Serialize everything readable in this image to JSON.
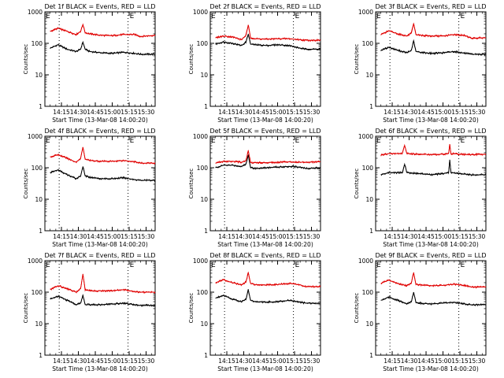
{
  "figure": {
    "xlabel": "Start Time (13-Mar-08 14:00:20)",
    "ylabel": "Counts/sec",
    "x_tick_labels": [
      "14:15",
      "14:30",
      "14:45",
      "15:00",
      "15:15",
      "15:30"
    ],
    "y_tick_labels": [
      "1",
      "10",
      "100",
      "1000"
    ],
    "marker_label": "E",
    "colors": {
      "events": "#000000",
      "lld": "#e00000"
    }
  },
  "chart_data": [
    {
      "type": "line",
      "title": "Det 1f BLACK = Events, RED = LLD",
      "x": [
        "14:05",
        "14:12",
        "14:20",
        "14:28",
        "14:32",
        "14:34",
        "14:36",
        "14:40",
        "14:50",
        "15:00",
        "15:10",
        "15:20",
        "15:25",
        "15:38"
      ],
      "xlim": [
        "14:00:20",
        "15:38"
      ],
      "ylim": [
        1,
        1000
      ],
      "yscale": "log",
      "vlines": [
        "14:13",
        "15:14"
      ],
      "series": [
        {
          "name": "Events",
          "values": [
            70,
            90,
            65,
            55,
            65,
            110,
            65,
            55,
            50,
            48,
            52,
            48,
            45,
            45
          ]
        },
        {
          "name": "LLD",
          "values": [
            240,
            300,
            240,
            190,
            240,
            400,
            220,
            200,
            180,
            175,
            190,
            190,
            165,
            180
          ]
        }
      ]
    },
    {
      "type": "line",
      "title": "Det 2f BLACK = Events, RED = LLD",
      "x": [
        "14:05",
        "14:12",
        "14:20",
        "14:28",
        "14:32",
        "14:34",
        "14:36",
        "14:40",
        "14:50",
        "15:00",
        "15:10",
        "15:20",
        "15:25",
        "15:38"
      ],
      "xlim": [
        "14:00:20",
        "15:38"
      ],
      "ylim": [
        1,
        1000
      ],
      "yscale": "log",
      "vlines": [
        "14:13",
        "15:14"
      ],
      "series": [
        {
          "name": "Events",
          "values": [
            95,
            110,
            100,
            85,
            110,
            200,
            95,
            90,
            85,
            90,
            85,
            70,
            65,
            65
          ]
        },
        {
          "name": "LLD",
          "values": [
            150,
            170,
            160,
            130,
            180,
            380,
            150,
            140,
            135,
            140,
            140,
            130,
            125,
            125
          ]
        }
      ]
    },
    {
      "type": "line",
      "title": "Det 3f BLACK = Events, RED = LLD",
      "x": [
        "14:05",
        "14:12",
        "14:20",
        "14:28",
        "14:32",
        "14:34",
        "14:36",
        "14:40",
        "14:50",
        "15:00",
        "15:10",
        "15:20",
        "15:25",
        "15:38"
      ],
      "xlim": [
        "14:00:20",
        "15:38"
      ],
      "ylim": [
        1,
        1000
      ],
      "yscale": "log",
      "vlines": [
        "14:13",
        "15:14"
      ],
      "series": [
        {
          "name": "Events",
          "values": [
            60,
            75,
            60,
            50,
            60,
            120,
            55,
            52,
            48,
            50,
            55,
            48,
            45,
            45
          ]
        },
        {
          "name": "LLD",
          "values": [
            190,
            250,
            200,
            170,
            210,
            420,
            190,
            180,
            170,
            170,
            190,
            175,
            145,
            150
          ]
        }
      ]
    },
    {
      "type": "line",
      "title": "Det 4f BLACK = Events, RED = LLD",
      "x": [
        "14:05",
        "14:12",
        "14:20",
        "14:28",
        "14:32",
        "14:34",
        "14:36",
        "14:40",
        "14:50",
        "15:00",
        "15:10",
        "15:20",
        "15:25",
        "15:38"
      ],
      "xlim": [
        "14:00:20",
        "15:38"
      ],
      "ylim": [
        1,
        1000
      ],
      "yscale": "log",
      "vlines": [
        "14:13",
        "15:14"
      ],
      "series": [
        {
          "name": "Events",
          "values": [
            70,
            85,
            60,
            45,
            55,
            110,
            55,
            50,
            45,
            45,
            48,
            42,
            40,
            40
          ]
        },
        {
          "name": "LLD",
          "values": [
            220,
            260,
            200,
            150,
            200,
            450,
            190,
            170,
            160,
            160,
            170,
            155,
            140,
            140
          ]
        }
      ]
    },
    {
      "type": "line",
      "title": "Det 5f BLACK = Events, RED = LLD",
      "x": [
        "14:05",
        "14:12",
        "14:20",
        "14:28",
        "14:32",
        "14:34",
        "14:36",
        "14:40",
        "14:50",
        "15:00",
        "15:10",
        "15:20",
        "15:25",
        "15:38"
      ],
      "xlim": [
        "14:00:20",
        "15:38"
      ],
      "ylim": [
        1,
        1000
      ],
      "yscale": "log",
      "vlines": [
        "14:13",
        "15:14"
      ],
      "series": [
        {
          "name": "Events",
          "values": [
            100,
            120,
            120,
            110,
            130,
            250,
            105,
            95,
            100,
            105,
            110,
            105,
            95,
            100
          ]
        },
        {
          "name": "LLD",
          "values": [
            140,
            160,
            160,
            150,
            170,
            350,
            150,
            145,
            145,
            150,
            155,
            150,
            150,
            155
          ]
        }
      ]
    },
    {
      "type": "line",
      "title": "Det 6f BLACK = Events, RED = LLD",
      "x": [
        "14:05",
        "14:12",
        "14:20",
        "14:24",
        "14:26",
        "14:28",
        "14:40",
        "14:50",
        "15:00",
        "15:05",
        "15:06",
        "15:07",
        "15:15",
        "15:25",
        "15:38"
      ],
      "xlim": [
        "14:00:20",
        "15:38"
      ],
      "ylim": [
        1,
        1000
      ],
      "yscale": "log",
      "vlines": [
        "14:13",
        "15:14"
      ],
      "series": [
        {
          "name": "Events",
          "values": [
            60,
            70,
            70,
            70,
            130,
            70,
            65,
            60,
            65,
            70,
            180,
            70,
            65,
            60,
            60
          ]
        },
        {
          "name": "LLD",
          "values": [
            250,
            280,
            280,
            280,
            520,
            280,
            270,
            260,
            270,
            280,
            560,
            280,
            270,
            260,
            270
          ]
        }
      ]
    },
    {
      "type": "line",
      "title": "Det 7f BLACK = Events, RED = LLD",
      "x": [
        "14:05",
        "14:12",
        "14:20",
        "14:28",
        "14:32",
        "14:34",
        "14:36",
        "14:40",
        "14:50",
        "15:00",
        "15:10",
        "15:20",
        "15:25",
        "15:38"
      ],
      "xlim": [
        "14:00:20",
        "15:38"
      ],
      "ylim": [
        1,
        1000
      ],
      "yscale": "log",
      "vlines": [
        "14:13",
        "15:14"
      ],
      "series": [
        {
          "name": "Events",
          "values": [
            60,
            75,
            55,
            40,
            45,
            80,
            40,
            40,
            40,
            42,
            45,
            40,
            38,
            38
          ]
        },
        {
          "name": "LLD",
          "values": [
            120,
            160,
            130,
            100,
            130,
            380,
            120,
            110,
            110,
            110,
            120,
            105,
            100,
            100
          ]
        }
      ]
    },
    {
      "type": "line",
      "title": "Det 8f BLACK = Events, RED = LLD",
      "x": [
        "14:05",
        "14:12",
        "14:20",
        "14:28",
        "14:32",
        "14:34",
        "14:36",
        "14:40",
        "14:50",
        "15:00",
        "15:10",
        "15:20",
        "15:25",
        "15:38"
      ],
      "xlim": [
        "14:00:20",
        "15:38"
      ],
      "ylim": [
        1,
        1000
      ],
      "yscale": "log",
      "vlines": [
        "14:13",
        "15:14"
      ],
      "series": [
        {
          "name": "Events",
          "values": [
            65,
            80,
            60,
            50,
            60,
            120,
            55,
            50,
            48,
            50,
            55,
            48,
            45,
            45
          ]
        },
        {
          "name": "LLD",
          "values": [
            200,
            250,
            200,
            170,
            210,
            420,
            190,
            175,
            170,
            175,
            190,
            170,
            150,
            150
          ]
        }
      ]
    },
    {
      "type": "line",
      "title": "Det 9f BLACK = Events, RED = LLD",
      "x": [
        "14:05",
        "14:12",
        "14:20",
        "14:28",
        "14:32",
        "14:34",
        "14:36",
        "14:40",
        "14:50",
        "15:00",
        "15:10",
        "15:20",
        "15:25",
        "15:38"
      ],
      "xlim": [
        "14:00:20",
        "15:38"
      ],
      "ylim": [
        1,
        1000
      ],
      "yscale": "log",
      "vlines": [
        "14:13",
        "15:14"
      ],
      "series": [
        {
          "name": "Events",
          "values": [
            55,
            70,
            55,
            42,
            50,
            100,
            48,
            45,
            42,
            45,
            48,
            42,
            40,
            40
          ]
        },
        {
          "name": "LLD",
          "values": [
            190,
            240,
            190,
            160,
            200,
            420,
            180,
            170,
            160,
            165,
            180,
            160,
            145,
            145
          ]
        }
      ]
    }
  ]
}
